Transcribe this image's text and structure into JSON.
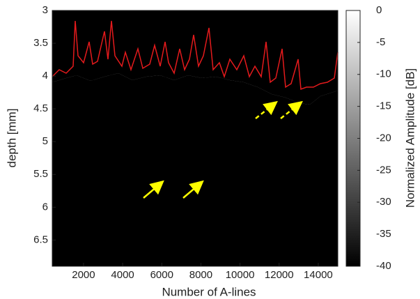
{
  "chart_data": {
    "type": "image",
    "xlabel": "Number of A-lines",
    "ylabel": "depth [mm]",
    "xlim": [
      400,
      15000
    ],
    "ylim": [
      3,
      6.9
    ],
    "y_reversed": true,
    "xticks": [
      2000,
      4000,
      6000,
      8000,
      10000,
      12000,
      14000
    ],
    "yticks": [
      3,
      3.5,
      4,
      4.5,
      5,
      5.5,
      6,
      6.5
    ],
    "colormap": "gray",
    "colorbar": {
      "label": "Normalized Amplitude [dB]",
      "lim": [
        -40,
        0
      ],
      "ticks": [
        0,
        -5,
        -10,
        -15,
        -20,
        -25,
        -30,
        -35,
        -40
      ]
    }
  }
}
